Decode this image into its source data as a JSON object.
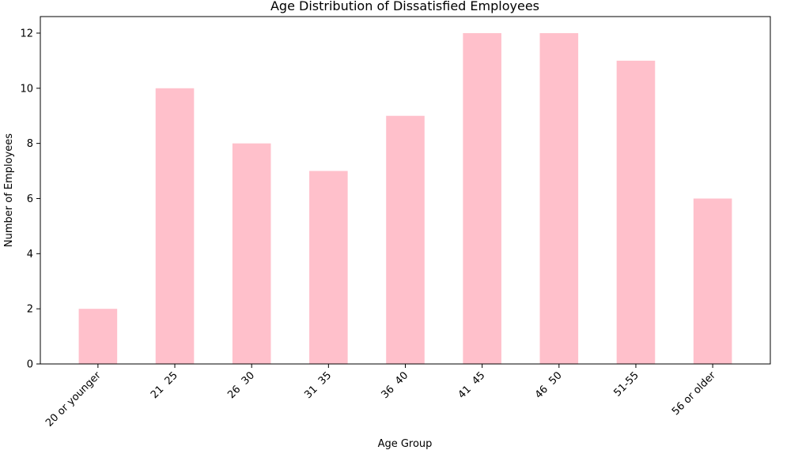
{
  "chart_data": {
    "type": "bar",
    "title": "Age Distribution of Dissatisfied Employees",
    "xlabel": "Age Group",
    "ylabel": "Number of Employees",
    "categories": [
      "20 or younger",
      "21  25",
      "26  30",
      "31  35",
      "36  40",
      "41  45",
      "46  50",
      "51-55",
      "56 or older"
    ],
    "values": [
      2,
      10,
      8,
      7,
      9,
      12,
      12,
      11,
      6
    ],
    "ylim": [
      0,
      12.6
    ],
    "yticks": [
      0,
      2,
      4,
      6,
      8,
      10,
      12
    ],
    "bar_color": "#ffc0cb",
    "grid": false,
    "legend": "none"
  }
}
